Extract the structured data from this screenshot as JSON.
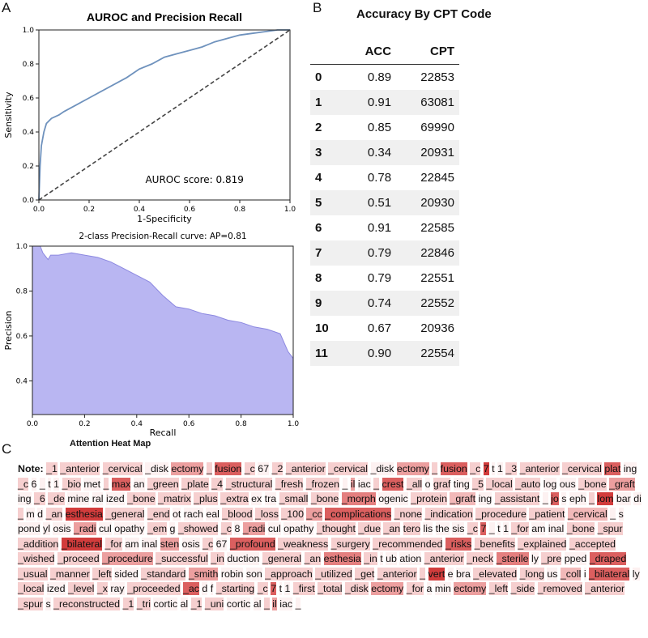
{
  "panels": {
    "a": "A",
    "b": "B",
    "c": "C"
  },
  "chart_data": [
    {
      "type": "line",
      "title": "AUROC and Precision Recall",
      "xlabel": "1-Specificity",
      "ylabel": "Sensitivity",
      "xlim": [
        0,
        1
      ],
      "ylim": [
        0,
        1
      ],
      "xticks": [
        "0.0",
        "0.2",
        "0.4",
        "0.6",
        "0.8",
        "1.0"
      ],
      "yticks": [
        "0.0",
        "0.2",
        "0.4",
        "0.6",
        "0.8",
        "1.0"
      ],
      "annotation": "AUROC score: 0.819",
      "series": [
        {
          "x": [
            0,
            0.005,
            0.01,
            0.02,
            0.03,
            0.05,
            0.08,
            0.1,
            0.15,
            0.2,
            0.25,
            0.3,
            0.35,
            0.4,
            0.45,
            0.5,
            0.55,
            0.6,
            0.65,
            0.7,
            0.75,
            0.8,
            0.85,
            0.9,
            0.95,
            1.0
          ],
          "y": [
            0,
            0.2,
            0.32,
            0.4,
            0.45,
            0.48,
            0.5,
            0.52,
            0.56,
            0.6,
            0.64,
            0.68,
            0.72,
            0.77,
            0.8,
            0.84,
            0.86,
            0.88,
            0.9,
            0.93,
            0.95,
            0.97,
            0.98,
            0.99,
            1.0,
            1.0
          ]
        },
        {
          "x": [
            0,
            1
          ],
          "y": [
            0,
            1
          ],
          "style": "dashed"
        }
      ]
    },
    {
      "type": "area",
      "title": "2-class Precision-Recall curve: AP=0.81",
      "xlabel": "Recall",
      "ylabel": "Precision",
      "xlim": [
        0,
        1
      ],
      "ylim": [
        0,
        1.0
      ],
      "xticks": [
        "0.0",
        "0.2",
        "0.4",
        "0.6",
        "0.8",
        "1.0"
      ],
      "yticks": [
        "0.4",
        "0.6",
        "0.8",
        "1.0"
      ],
      "series": [
        {
          "x": [
            0,
            0.03,
            0.04,
            0.06,
            0.07,
            0.1,
            0.15,
            0.2,
            0.25,
            0.3,
            0.35,
            0.4,
            0.45,
            0.5,
            0.55,
            0.6,
            0.65,
            0.7,
            0.75,
            0.8,
            0.85,
            0.9,
            0.95,
            0.98,
            1.0
          ],
          "y": [
            1.0,
            1.0,
            0.97,
            0.94,
            0.96,
            0.96,
            0.97,
            0.96,
            0.95,
            0.93,
            0.9,
            0.87,
            0.84,
            0.78,
            0.73,
            0.72,
            0.7,
            0.69,
            0.67,
            0.66,
            0.64,
            0.63,
            0.61,
            0.53,
            0.5
          ]
        }
      ]
    },
    {
      "type": "table",
      "title": "Accuracy By CPT Code",
      "columns": [
        "",
        "ACC",
        "CPT"
      ],
      "rows": [
        [
          "0",
          "0.89",
          "22853"
        ],
        [
          "1",
          "0.91",
          "63081"
        ],
        [
          "2",
          "0.85",
          "69990"
        ],
        [
          "3",
          "0.34",
          "20931"
        ],
        [
          "4",
          "0.78",
          "22845"
        ],
        [
          "5",
          "0.51",
          "20930"
        ],
        [
          "6",
          "0.91",
          "22585"
        ],
        [
          "7",
          "0.79",
          "22846"
        ],
        [
          "8",
          "0.79",
          "22551"
        ],
        [
          "9",
          "0.74",
          "22552"
        ],
        [
          "10",
          "0.67",
          "20936"
        ],
        [
          "11",
          "0.90",
          "22554"
        ]
      ]
    },
    {
      "type": "heatmap",
      "title": "Attention Heat Map",
      "label": "Note:",
      "tokens": [
        [
          "_1",
          1
        ],
        [
          "_anterior",
          1
        ],
        [
          "_cervical",
          1
        ],
        [
          "_disk",
          0
        ],
        [
          "ectomy",
          3
        ],
        [
          "_",
          1
        ],
        [
          "fusion",
          5
        ],
        [
          "_c",
          1
        ],
        [
          "67",
          0
        ],
        [
          "_2",
          1
        ],
        [
          "_anterior",
          1
        ],
        [
          "_cervical",
          1
        ],
        [
          "_disk",
          0
        ],
        [
          "ectomy",
          3
        ],
        [
          "_",
          1
        ],
        [
          "fusion",
          5
        ],
        [
          "_c",
          1
        ],
        [
          "7",
          6
        ],
        [
          "t",
          0
        ],
        [
          "1",
          0
        ],
        [
          "_3",
          1
        ],
        [
          "_anterior",
          1
        ],
        [
          "_cervical",
          1
        ],
        [
          "plat",
          5
        ],
        [
          "ing",
          0
        ],
        [
          "_c",
          1
        ],
        [
          "6",
          0
        ],
        [
          "_",
          0
        ],
        [
          "t",
          0
        ],
        [
          "1",
          0
        ],
        [
          "_bio",
          1
        ],
        [
          "met",
          0
        ],
        [
          "_",
          1
        ],
        [
          "max",
          5
        ],
        [
          "an",
          0
        ],
        [
          "_green",
          1
        ],
        [
          "_plate",
          1
        ],
        [
          "_4",
          1
        ],
        [
          "_structural",
          1
        ],
        [
          "_fresh",
          1
        ],
        [
          "_frozen",
          1
        ],
        [
          "_",
          0
        ],
        [
          "il",
          3
        ],
        [
          "iac",
          0
        ],
        [
          "_",
          1
        ],
        [
          "crest",
          5
        ],
        [
          "_all",
          1
        ],
        [
          "o",
          0
        ],
        [
          "graf",
          1
        ],
        [
          "ting",
          0
        ],
        [
          "_5",
          1
        ],
        [
          "_local",
          1
        ],
        [
          "_auto",
          1
        ],
        [
          "log",
          0
        ],
        [
          "ous",
          0
        ],
        [
          "_bone",
          1
        ],
        [
          "_graft",
          3
        ],
        [
          "ing",
          0
        ],
        [
          "_6",
          1
        ],
        [
          "_de",
          1
        ],
        [
          "mine",
          0
        ],
        [
          "ral",
          0
        ],
        [
          "ized",
          0
        ],
        [
          "_bone",
          1
        ],
        [
          "_matrix",
          1
        ],
        [
          "_plus",
          1
        ],
        [
          "_extra",
          1
        ],
        [
          "ex",
          0
        ],
        [
          "tra",
          0
        ],
        [
          "_small",
          1
        ],
        [
          "_bone",
          1
        ],
        [
          "_morph",
          4
        ],
        [
          "ogenic",
          0
        ],
        [
          "_protein",
          1
        ],
        [
          "_graft",
          2
        ],
        [
          "ing",
          0
        ],
        [
          "_assistant",
          1
        ],
        [
          "_",
          0
        ],
        [
          "jo",
          5
        ],
        [
          "s",
          0
        ],
        [
          "eph",
          0
        ],
        [
          "_",
          1
        ],
        [
          "lom",
          6
        ],
        [
          "bar",
          0
        ],
        [
          "di",
          0
        ],
        [
          "_",
          1
        ],
        [
          "m",
          0
        ],
        [
          "d",
          0
        ],
        [
          "_an",
          1
        ],
        [
          "esthesia",
          6
        ],
        [
          "_general",
          1
        ],
        [
          "_end",
          1
        ],
        [
          "ot",
          0
        ],
        [
          "rach",
          0
        ],
        [
          "eal",
          0
        ],
        [
          "_blood",
          1
        ],
        [
          "_loss",
          1
        ],
        [
          "_100",
          1
        ],
        [
          "_cc",
          3
        ],
        [
          "_complications",
          5
        ],
        [
          "_none",
          1
        ],
        [
          "_indication",
          1
        ],
        [
          "_procedure",
          1
        ],
        [
          "_patient",
          1
        ],
        [
          "_cervical",
          2
        ],
        [
          "_",
          0
        ],
        [
          "s",
          0
        ],
        [
          "pond",
          0
        ],
        [
          "yl",
          0
        ],
        [
          "osis",
          0
        ],
        [
          "_radi",
          3
        ],
        [
          "cul",
          0
        ],
        [
          "opathy",
          0
        ],
        [
          "_em",
          1
        ],
        [
          "g",
          0
        ],
        [
          "_showed",
          1
        ],
        [
          "_c",
          1
        ],
        [
          "8",
          0
        ],
        [
          "_radi",
          3
        ],
        [
          "cul",
          0
        ],
        [
          "opathy",
          0
        ],
        [
          "_thought",
          1
        ],
        [
          "_due",
          1
        ],
        [
          "_an",
          1
        ],
        [
          "tero",
          1
        ],
        [
          "lis",
          0
        ],
        [
          "the",
          0
        ],
        [
          "sis",
          0
        ],
        [
          "_c",
          1
        ],
        [
          "7",
          5
        ],
        [
          "_",
          0
        ],
        [
          "t",
          0
        ],
        [
          "1",
          0
        ],
        [
          "_for",
          1
        ],
        [
          "am",
          0
        ],
        [
          "inal",
          0
        ],
        [
          "_bone",
          1
        ],
        [
          "_spur",
          1
        ],
        [
          "_addition",
          1
        ],
        [
          "_bilateral",
          6
        ],
        [
          "_for",
          1
        ],
        [
          "am",
          0
        ],
        [
          "inal",
          0
        ],
        [
          "sten",
          3
        ],
        [
          "osis",
          0
        ],
        [
          "_c",
          1
        ],
        [
          "67",
          0
        ],
        [
          "_profound",
          5
        ],
        [
          "_weakness",
          1
        ],
        [
          "_surgery",
          1
        ],
        [
          "_recommended",
          1
        ],
        [
          "_risks",
          5
        ],
        [
          "_benefits",
          1
        ],
        [
          "_explained",
          1
        ],
        [
          "_accepted",
          1
        ],
        [
          "_wished",
          1
        ],
        [
          "_proceed",
          1
        ],
        [
          "_procedure",
          3
        ],
        [
          "_successful",
          1
        ],
        [
          "_in",
          1
        ],
        [
          "duction",
          0
        ],
        [
          "_general",
          1
        ],
        [
          "_an",
          1
        ],
        [
          "esthesia",
          4
        ],
        [
          "_in",
          1
        ],
        [
          "t",
          0
        ],
        [
          "ub",
          0
        ],
        [
          "ation",
          0
        ],
        [
          "_anterior",
          1
        ],
        [
          "_neck",
          1
        ],
        [
          "_sterile",
          4
        ],
        [
          "ly",
          0
        ],
        [
          "_pre",
          1
        ],
        [
          "pped",
          0
        ],
        [
          "_draped",
          5
        ],
        [
          "_usual",
          1
        ],
        [
          "_manner",
          1
        ],
        [
          "_left",
          1
        ],
        [
          "sided",
          0
        ],
        [
          "_standard",
          1
        ],
        [
          "_smith",
          3
        ],
        [
          "robin",
          0
        ],
        [
          "son",
          0
        ],
        [
          "_approach",
          1
        ],
        [
          "_utilized",
          1
        ],
        [
          "_get",
          1
        ],
        [
          "_anterior",
          1
        ],
        [
          "_",
          1
        ],
        [
          "vert",
          6
        ],
        [
          "e",
          0
        ],
        [
          "bra",
          0
        ],
        [
          "_elevated",
          1
        ],
        [
          "_long",
          1
        ],
        [
          "us",
          0
        ],
        [
          "_coll",
          2
        ],
        [
          "i",
          0
        ],
        [
          "_bilateral",
          5
        ],
        [
          "ly",
          0
        ],
        [
          "_local",
          1
        ],
        [
          "ized",
          0
        ],
        [
          "_level",
          1
        ],
        [
          "_x",
          1
        ],
        [
          "ray",
          0
        ],
        [
          "_proceeded",
          1
        ],
        [
          "_ac",
          5
        ],
        [
          "d",
          0
        ],
        [
          "f",
          0
        ],
        [
          "_starting",
          1
        ],
        [
          "_c",
          1
        ],
        [
          "7",
          5
        ],
        [
          "t",
          0
        ],
        [
          "1",
          0
        ],
        [
          "_first",
          1
        ],
        [
          "_total",
          1
        ],
        [
          "_disk",
          1
        ],
        [
          "ectomy",
          3
        ],
        [
          "_for",
          1
        ],
        [
          "a",
          0
        ],
        [
          "min",
          0
        ],
        [
          "ectomy",
          3
        ],
        [
          "_left",
          1
        ],
        [
          "_side",
          1
        ],
        [
          "_removed",
          1
        ],
        [
          "_anterior",
          1
        ],
        [
          "_spur",
          1
        ],
        [
          "s",
          0
        ],
        [
          "_reconstructed",
          1
        ],
        [
          "_1",
          1
        ],
        [
          "_tri",
          1
        ],
        [
          "cortic",
          0
        ],
        [
          "al",
          0
        ],
        [
          "_1",
          1
        ],
        [
          "_uni",
          1
        ],
        [
          "cortic",
          0
        ],
        [
          "al",
          0
        ],
        [
          "_",
          1
        ],
        [
          "il",
          3
        ],
        [
          "iac",
          0
        ],
        [
          "_",
          0
        ]
      ]
    }
  ]
}
